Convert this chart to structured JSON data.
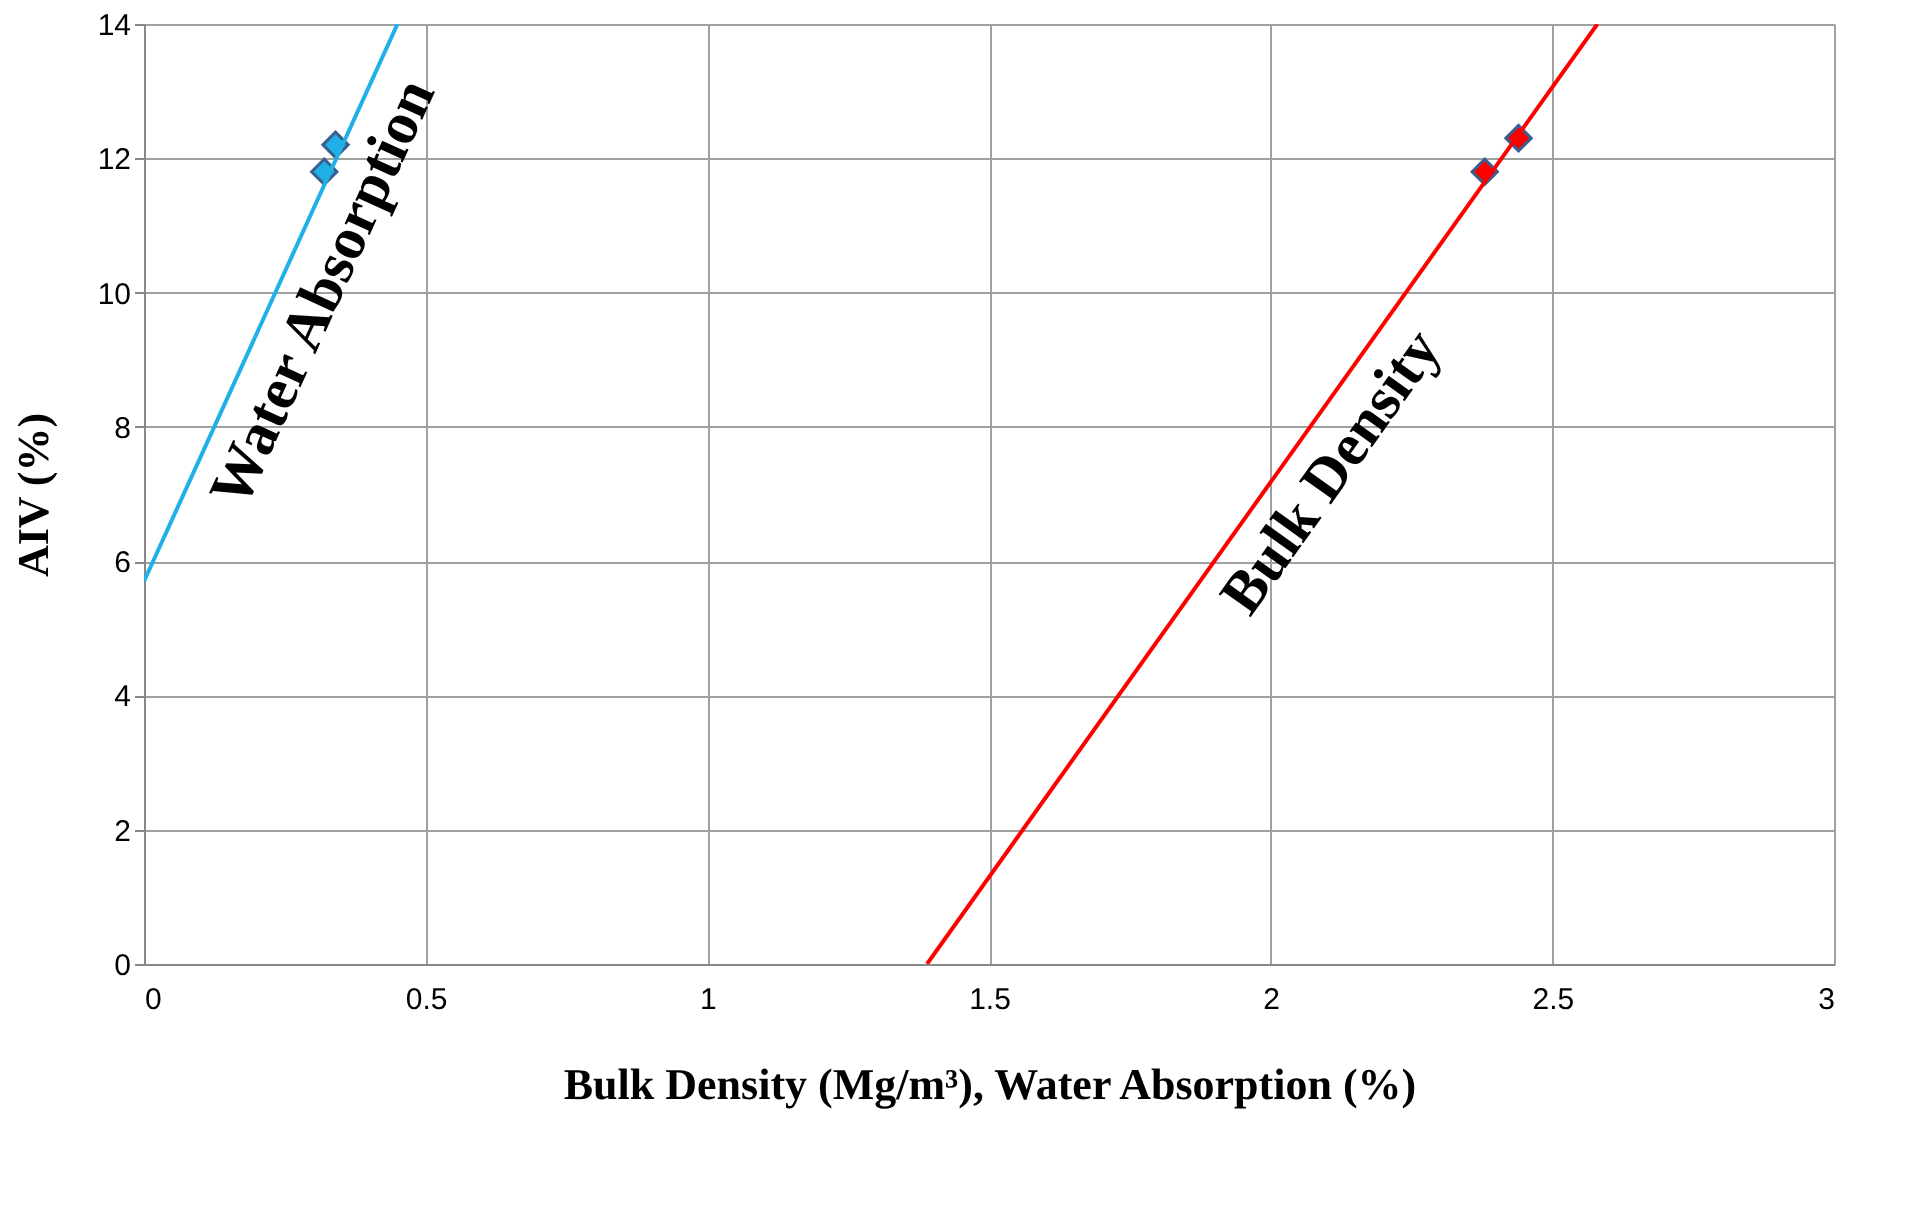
{
  "chart_data": {
    "type": "scatter",
    "xlabel": "Bulk Density (Mg/m³), Water Absorption (%)",
    "ylabel": "AIV (%)",
    "xlim": [
      0,
      3
    ],
    "ylim": [
      0,
      14
    ],
    "xticks": [
      0,
      0.5,
      1,
      1.5,
      2,
      2.5,
      3
    ],
    "yticks": [
      0,
      2,
      4,
      6,
      8,
      10,
      12,
      14
    ],
    "grid": true,
    "legend": false,
    "marker": "diamond",
    "series": [
      {
        "color": "#1fb0e8",
        "x": [
          0.32,
          0.34
        ],
        "values": [
          11.8,
          12.2
        ]
      },
      {
        "color": "#ff0000",
        "x": [
          2.38,
          2.44
        ],
        "values": [
          11.8,
          12.3
        ]
      },
      {
        "type": "line",
        "name": "Water Absorption",
        "marker": "none",
        "color": "#1fb0e8",
        "x": [
          0,
          0.45
        ],
        "values": [
          5.7,
          14
        ]
      },
      {
        "type": "line",
        "name": "Bulk Density",
        "marker": "none",
        "color": "#ff0000",
        "x": [
          1.39,
          2.58
        ],
        "values": [
          0,
          14
        ]
      }
    ]
  }
}
